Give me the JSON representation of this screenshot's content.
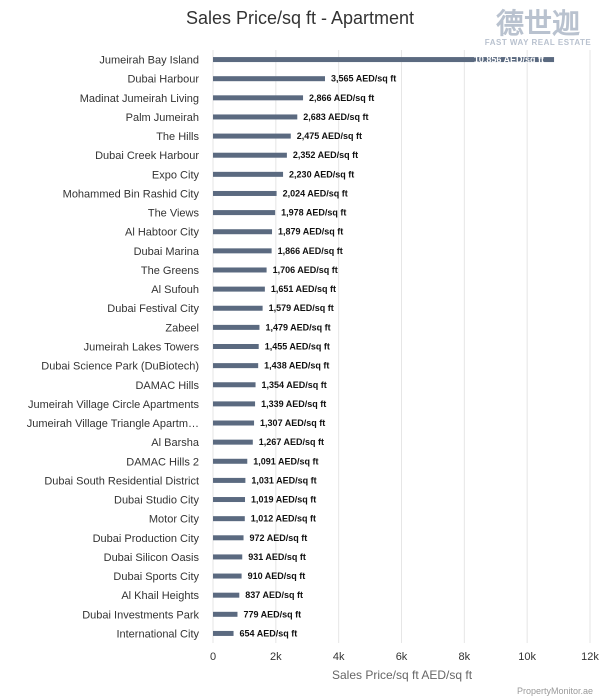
{
  "chart_data": {
    "type": "bar",
    "orientation": "horizontal",
    "title": "Sales Price/sq ft - Apartment",
    "xlabel": "Sales Price/sq ft AED/sq ft",
    "ylabel": "",
    "xlim": [
      0,
      12000
    ],
    "x_ticks": [
      0,
      2000,
      4000,
      6000,
      8000,
      10000,
      12000
    ],
    "x_tick_labels": [
      "0",
      "2k",
      "4k",
      "6k",
      "8k",
      "10k",
      "12k"
    ],
    "value_suffix": " AED/sq ft",
    "grid": true,
    "bar_color": "#5b6a80",
    "categories": [
      "Jumeirah Bay Island",
      "Dubai Harbour",
      "Madinat Jumeirah Living",
      "Palm Jumeirah",
      "The Hills",
      "Dubai Creek Harbour",
      "Expo City",
      "Mohammed Bin Rashid City",
      "The Views",
      "Al Habtoor City",
      "Dubai Marina",
      "The Greens",
      "Al Sufouh",
      "Dubai Festival City",
      "Zabeel",
      "Jumeirah Lakes Towers",
      "Dubai Science Park (DuBiotech)",
      "DAMAC Hills",
      "Jumeirah Village Circle Apartments",
      "Jumeirah Village Triangle Apartm…",
      "Al Barsha",
      "DAMAC Hills 2",
      "Dubai South Residential District",
      "Dubai Studio City",
      "Motor City",
      "Dubai Production City",
      "Dubai Silicon Oasis",
      "Dubai Sports City",
      "Al Khail Heights",
      "Dubai Investments Park",
      "International City"
    ],
    "values": [
      10856,
      3565,
      2866,
      2683,
      2475,
      2352,
      2230,
      2024,
      1978,
      1879,
      1866,
      1706,
      1651,
      1579,
      1479,
      1455,
      1438,
      1354,
      1339,
      1307,
      1267,
      1091,
      1031,
      1019,
      1012,
      972,
      931,
      910,
      837,
      779,
      654
    ],
    "data_labels": [
      "10,856 AED/sq ft",
      "3,565 AED/sq ft",
      "2,866 AED/sq ft",
      "2,683 AED/sq ft",
      "2,475 AED/sq ft",
      "2,352 AED/sq ft",
      "2,230 AED/sq ft",
      "2,024 AED/sq ft",
      "1,978 AED/sq ft",
      "1,879 AED/sq ft",
      "1,866 AED/sq ft",
      "1,706 AED/sq ft",
      "1,651 AED/sq ft",
      "1,579 AED/sq ft",
      "1,479 AED/sq ft",
      "1,455 AED/sq ft",
      "1,438 AED/sq ft",
      "1,354 AED/sq ft",
      "1,339 AED/sq ft",
      "1,307 AED/sq ft",
      "1,267 AED/sq ft",
      "1,091 AED/sq ft",
      "1,031 AED/sq ft",
      "1,019 AED/sq ft",
      "1,012 AED/sq ft",
      "972 AED/sq ft",
      "931 AED/sq ft",
      "910 AED/sq ft",
      "837 AED/sq ft",
      "779 AED/sq ft",
      "654 AED/sq ft"
    ]
  },
  "logo": {
    "name": "德世迦",
    "tagline": "FAST WAY REAL ESTATE"
  },
  "credit": "PropertyMonitor.ae"
}
